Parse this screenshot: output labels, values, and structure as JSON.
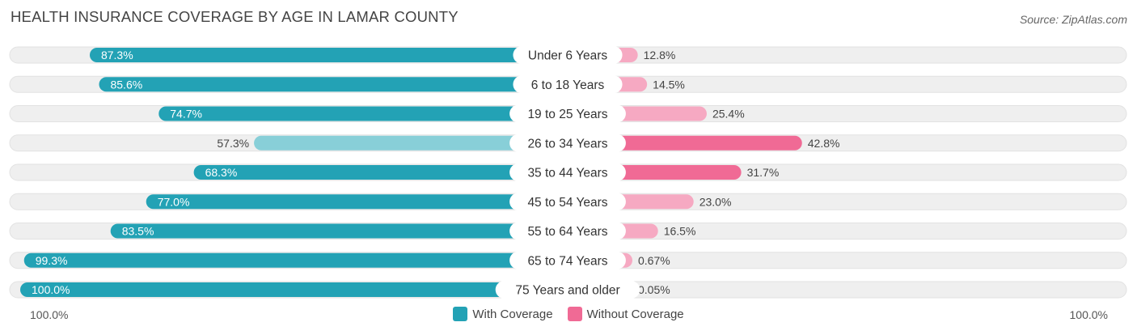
{
  "title": "HEALTH INSURANCE COVERAGE BY AGE IN LAMAR COUNTY",
  "source": "Source: ZipAtlas.com",
  "colors": {
    "with_strong": "#23a2b5",
    "with_light": "#88cfd8",
    "without_strong": "#f06a95",
    "without_light": "#f6a9c2",
    "track": "#efefef"
  },
  "chart_data": {
    "type": "bar",
    "orientation": "horizontal-diverging",
    "categories": [
      "Under 6 Years",
      "6 to 18 Years",
      "19 to 25 Years",
      "26 to 34 Years",
      "35 to 44 Years",
      "45 to 54 Years",
      "55 to 64 Years",
      "65 to 74 Years",
      "75 Years and older"
    ],
    "series": [
      {
        "name": "With Coverage",
        "values": [
          87.3,
          85.6,
          74.7,
          57.3,
          68.3,
          77.0,
          83.5,
          99.3,
          100.0
        ],
        "labels": [
          "87.3%",
          "85.6%",
          "74.7%",
          "57.3%",
          "68.3%",
          "77.0%",
          "83.5%",
          "99.3%",
          "100.0%"
        ]
      },
      {
        "name": "Without Coverage",
        "values": [
          12.8,
          14.5,
          25.4,
          42.8,
          31.7,
          23.0,
          16.5,
          0.67,
          0.05
        ],
        "labels": [
          "12.8%",
          "14.5%",
          "25.4%",
          "42.8%",
          "31.7%",
          "23.0%",
          "16.5%",
          "0.67%",
          "0.05%"
        ]
      }
    ],
    "xlim": [
      -100,
      100
    ],
    "axis_left_label": "100.0%",
    "axis_right_label": "100.0%",
    "legend": [
      "With Coverage",
      "Without Coverage"
    ],
    "legend_position": "bottom-center"
  }
}
